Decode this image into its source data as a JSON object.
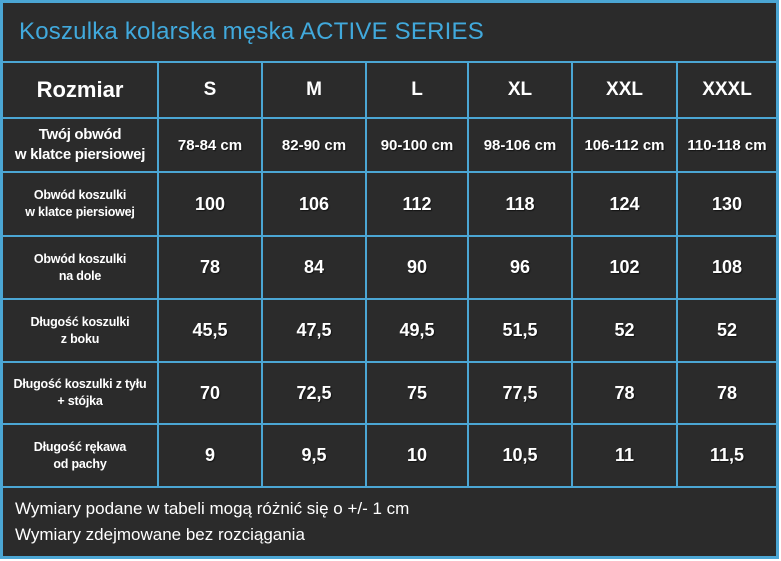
{
  "title": "Koszulka kolarska męska ACTIVE SERIES",
  "colors": {
    "page_margin": "#FFFFFF",
    "cell_background": "#2B2B2B",
    "grid_border": "#4BA6D4",
    "title_text": "#41A9DC",
    "cell_text": "#FFFFFF"
  },
  "table": {
    "header": {
      "label": "Rozmiar",
      "sizes": [
        "S",
        "M",
        "L",
        "XL",
        "XXL",
        "XXXL"
      ]
    },
    "rows": [
      {
        "label": "Twój obwód\nw klatce piersiowej",
        "values": [
          "78-84 cm",
          "82-90 cm",
          "90-100 cm",
          "98-106 cm",
          "106-112 cm",
          "110-118 cm"
        ]
      },
      {
        "label": "Obwód koszulki\nw klatce piersiowej",
        "values": [
          "100",
          "106",
          "112",
          "118",
          "124",
          "130"
        ]
      },
      {
        "label": "Obwód koszulki\nna dole",
        "values": [
          "78",
          "84",
          "90",
          "96",
          "102",
          "108"
        ]
      },
      {
        "label": "Długość koszulki\nz boku",
        "values": [
          "45,5",
          "47,5",
          "49,5",
          "51,5",
          "52",
          "52"
        ]
      },
      {
        "label": "Długość koszulki z tyłu\n+ stójka",
        "values": [
          "70",
          "72,5",
          "75",
          "77,5",
          "78",
          "78"
        ]
      },
      {
        "label": "Długość rękawa\nod pachy",
        "values": [
          "9",
          "9,5",
          "10",
          "10,5",
          "11",
          "11,5"
        ]
      }
    ]
  },
  "footer": {
    "line1": "Wymiary podane w tabeli mogą różnić się o +/- 1 cm",
    "line2": "Wymiary zdejmowane bez rozciągania"
  },
  "chart_data": {
    "type": "table",
    "title": "Koszulka kolarska męska ACTIVE SERIES",
    "columns": [
      "Rozmiar",
      "S",
      "M",
      "L",
      "XL",
      "XXL",
      "XXXL"
    ],
    "rows": [
      [
        "Twój obwód w klatce piersiowej",
        "78-84 cm",
        "82-90 cm",
        "90-100 cm",
        "98-106 cm",
        "106-112 cm",
        "110-118 cm"
      ],
      [
        "Obwód koszulki w klatce piersiowej",
        "100",
        "106",
        "112",
        "118",
        "124",
        "130"
      ],
      [
        "Obwód koszulki na dole",
        "78",
        "84",
        "90",
        "96",
        "102",
        "108"
      ],
      [
        "Długość koszulki z boku",
        "45,5",
        "47,5",
        "49,5",
        "51,5",
        "52",
        "52"
      ],
      [
        "Długość koszulki z tyłu + stójka",
        "70",
        "72,5",
        "75",
        "77,5",
        "78",
        "78"
      ],
      [
        "Długość rękawa od pachy",
        "9",
        "9,5",
        "10",
        "10,5",
        "11",
        "11,5"
      ]
    ],
    "notes": [
      "Wymiary podane w tabeli mogą różnić się o +/- 1 cm",
      "Wymiary zdejmowane bez rozciągania"
    ],
    "units": "cm"
  }
}
